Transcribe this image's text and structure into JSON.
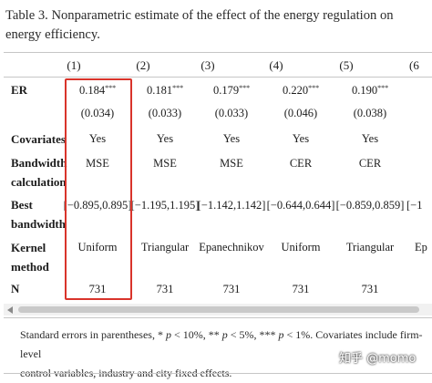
{
  "caption": "Table 3. Nonparametric estimate of the effect of the energy regulation on energy efficiency.",
  "table": {
    "columns": [
      "(1)",
      "(2)",
      "(3)",
      "(4)",
      "(5)",
      "(6"
    ],
    "rows": {
      "er": {
        "label": "ER",
        "coefs": [
          "0.184",
          "0.181",
          "0.179",
          "0.220",
          "0.190"
        ],
        "stars": [
          "***",
          "***",
          "***",
          "***",
          "***"
        ],
        "ses": [
          "(0.034)",
          "(0.033)",
          "(0.033)",
          "(0.046)",
          "(0.038)"
        ]
      },
      "covariates": {
        "label": "Covariates",
        "values": [
          "Yes",
          "Yes",
          "Yes",
          "Yes",
          "Yes"
        ]
      },
      "bandwidth_calc": {
        "label_line1": "Bandwidth",
        "label_line2": "calculation",
        "values": [
          "MSE",
          "MSE",
          "MSE",
          "CER",
          "CER"
        ]
      },
      "best_bandwidth": {
        "label_line1": "Best",
        "label_line2": "bandwidth",
        "values": [
          "[−0.895,0.895]",
          "[−1.195,1.195]",
          "[−1.142,1.142]",
          "[−0.644,0.644]",
          "[−0.859,0.859]",
          "[−1"
        ]
      },
      "kernel": {
        "label_line1": "Kernel",
        "label_line2": "method",
        "values": [
          "Uniform",
          "Triangular",
          "Epanechnikov",
          "Uniform",
          "Triangular",
          "Ep"
        ]
      },
      "n": {
        "label": "N",
        "values": [
          "731",
          "731",
          "731",
          "731",
          "731"
        ]
      }
    }
  },
  "footnote": {
    "line1_pre": "Standard errors in parentheses, * ",
    "p": "p",
    "t1": " < 10%, ** ",
    "t2": " < 5%, *** ",
    "t3": " < 1%. Covariates include firm-level",
    "line2": "control variables, industry and city fixed effects."
  },
  "watermark": "知乎 @momo",
  "colors": {
    "highlight": "#d9342b",
    "rule": "#c6c6c6",
    "text": "#1c1c1c"
  }
}
